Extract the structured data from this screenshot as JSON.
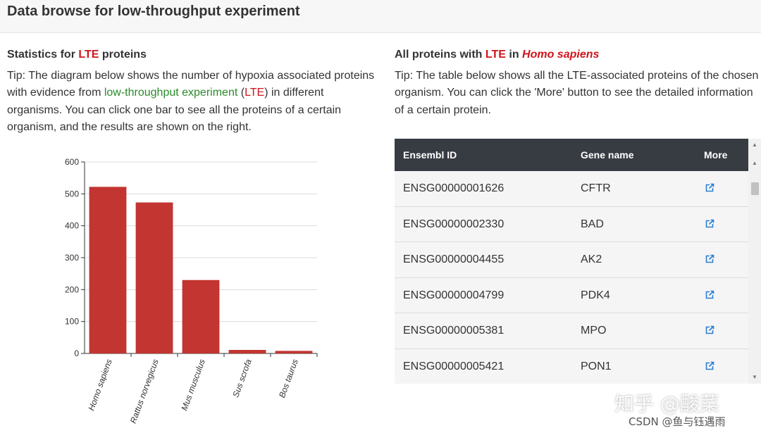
{
  "header": {
    "title": "Data browse for low-throughput experiment"
  },
  "left_panel": {
    "title_prefix": "Statistics for ",
    "title_highlight": "LTE",
    "title_suffix": " proteins",
    "tip_1": "Tip: The diagram below shows the number of hypoxia associated proteins with evidence from ",
    "tip_link": "low-throughput experiment",
    "tip_2": " (",
    "tip_abbr": "LTE",
    "tip_3": ") in different organisms. You can click one bar to see all the proteins of a certain organism, and the results are shown on the right."
  },
  "chart_data": {
    "type": "bar",
    "categories": [
      "Homo sapiens",
      "Rattus norvegicus",
      "Mus musculus",
      "Sus scrofa",
      "Bos taurus"
    ],
    "values": [
      522,
      473,
      230,
      11,
      8
    ],
    "ylim": [
      0,
      600
    ],
    "yticks": [
      "0",
      "100",
      "200",
      "300",
      "400",
      "500",
      "600"
    ],
    "grid": true,
    "bar_color": "#c23531"
  },
  "right_panel": {
    "title_prefix": "All proteins with ",
    "title_highlight": "LTE",
    "title_mid": " in ",
    "title_organism": "Homo sapiens",
    "tip": "Tip: The table below shows all the LTE-associated proteins of the chosen organism. You can click the 'More' button to see the detailed information of a certain protein."
  },
  "table": {
    "columns": [
      "Ensembl ID",
      "Gene name",
      "More"
    ],
    "rows": [
      {
        "id": "ENSG00000001626",
        "gene": "CFTR"
      },
      {
        "id": "ENSG00000002330",
        "gene": "BAD"
      },
      {
        "id": "ENSG00000004455",
        "gene": "AK2"
      },
      {
        "id": "ENSG00000004799",
        "gene": "PDK4"
      },
      {
        "id": "ENSG00000005381",
        "gene": "MPO"
      },
      {
        "id": "ENSG00000005421",
        "gene": "PON1"
      }
    ],
    "more_icon": "external-link-icon",
    "icon_color": "#2a7fd4"
  },
  "watermark": {
    "text": "知乎 @酸菜",
    "csdn": "CSDN @鱼与钰遇雨"
  }
}
